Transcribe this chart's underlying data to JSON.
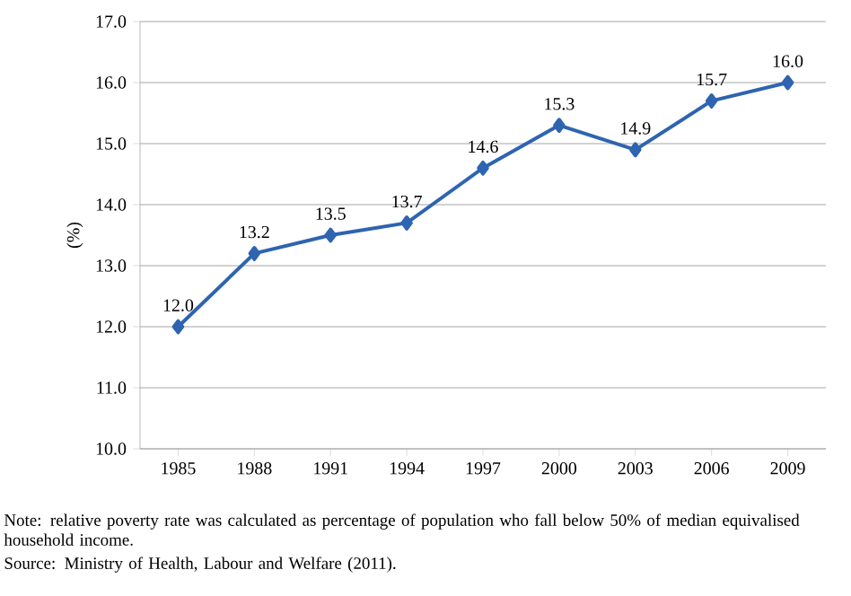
{
  "chart_data": {
    "type": "line",
    "ylabel": "(%)",
    "categories": [
      "1985",
      "1988",
      "1991",
      "1994",
      "1997",
      "2000",
      "2003",
      "2006",
      "2009"
    ],
    "series": [
      {
        "color": "#2e64b0",
        "values": [
          12.0,
          13.2,
          13.5,
          13.7,
          14.6,
          15.3,
          14.9,
          15.7,
          16.0
        ],
        "value_labels": [
          "12.0",
          "13.2",
          "13.5",
          "13.7",
          "14.6",
          "15.3",
          "14.9",
          "15.7",
          "16.0"
        ]
      }
    ],
    "ylim": [
      10,
      17
    ],
    "yticks": [
      {
        "value": 10,
        "label": "10.0"
      },
      {
        "value": 11,
        "label": "11.0"
      },
      {
        "value": 12,
        "label": "12.0"
      },
      {
        "value": 13,
        "label": "13.0"
      },
      {
        "value": 14,
        "label": "14.0"
      },
      {
        "value": 15,
        "label": "15.0"
      },
      {
        "value": 16,
        "label": "16.0"
      },
      {
        "value": 17,
        "label": "17.0"
      }
    ],
    "grid": "y",
    "marker": "diamond",
    "line_style": "solid",
    "annotations": [
      "Note: relative poverty rate was calculated as percentage of population who fall below 50% of median equivalised household income.",
      "Source: Ministry of Health, Labour and Welfare (2011)."
    ]
  }
}
